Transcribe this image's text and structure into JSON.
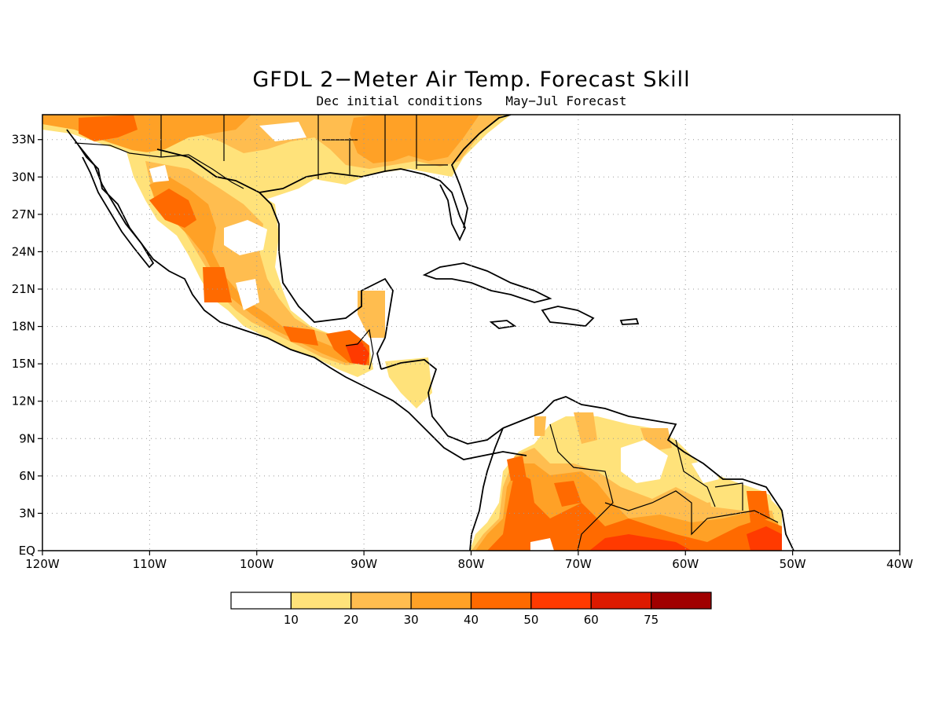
{
  "title": "GFDL 2−Meter Air Temp. Forecast Skill",
  "subtitle": "Dec initial conditions   May−Jul Forecast",
  "map": {
    "lon_range": [
      -120,
      -40
    ],
    "lat_range": [
      0,
      35
    ],
    "lon_ticks": [
      "120W",
      "110W",
      "100W",
      "90W",
      "80W",
      "70W",
      "60W",
      "50W",
      "40W"
    ],
    "lat_ticks": [
      "EQ",
      "3N",
      "6N",
      "9N",
      "12N",
      "15N",
      "18N",
      "21N",
      "24N",
      "27N",
      "30N",
      "33N"
    ],
    "grid": "dotted"
  },
  "legend": {
    "labels": [
      "10",
      "20",
      "30",
      "40",
      "50",
      "60",
      "75"
    ],
    "colors": [
      "#ffffff",
      "#ffe27a",
      "#ffbd4f",
      "#ffa126",
      "#ff6a00",
      "#ff3a00",
      "#dd1a00",
      "#a00000"
    ]
  },
  "colors": {
    "level1": "#ffe27a",
    "level2": "#ffbd4f",
    "level3": "#ffa126",
    "level4": "#ff6a00",
    "level5": "#ff3a00",
    "coast": "#000000"
  }
}
